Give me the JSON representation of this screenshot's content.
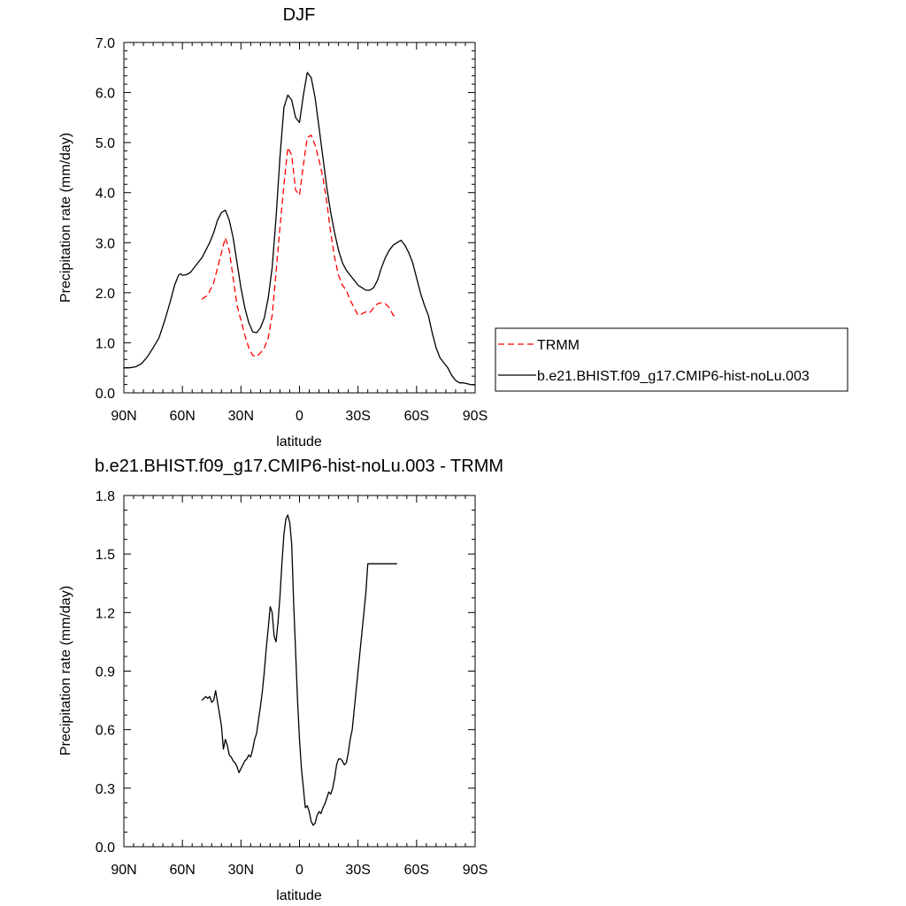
{
  "chart_data": [
    {
      "type": "line",
      "title": "DJF",
      "xlabel": "latitude",
      "ylabel": "Precipitation rate (mm/day)",
      "xlim": [
        90,
        -90
      ],
      "ylim": [
        0,
        7
      ],
      "x_ticks": [
        90,
        60,
        30,
        0,
        -30,
        -60,
        -90
      ],
      "x_tick_labels": [
        "90N",
        "60N",
        "30N",
        "0",
        "30S",
        "60S",
        "90S"
      ],
      "y_ticks": [
        0,
        1,
        2,
        3,
        4,
        5,
        6,
        7
      ],
      "y_tick_labels": [
        "0.0",
        "1.0",
        "2.0",
        "3.0",
        "4.0",
        "5.0",
        "6.0",
        "7.0"
      ],
      "legend_position": "right",
      "grid": false,
      "series": [
        {
          "name": "TRMM",
          "color": "#ff0000",
          "style": "dashed",
          "x": [
            50,
            47,
            44,
            41,
            38,
            36,
            34,
            32,
            30,
            28,
            26,
            24,
            22,
            20,
            18,
            16,
            14,
            12,
            10,
            8,
            6,
            4,
            2,
            0,
            -2,
            -4,
            -6,
            -8,
            -10,
            -12,
            -14,
            -16,
            -18,
            -20,
            -22,
            -24,
            -26,
            -28,
            -30,
            -32,
            -34,
            -36,
            -38,
            -40,
            -42,
            -44,
            -46,
            -48,
            -50
          ],
          "values": [
            1.87,
            1.95,
            2.2,
            2.65,
            3.1,
            2.85,
            2.3,
            1.75,
            1.45,
            1.15,
            0.9,
            0.75,
            0.72,
            0.8,
            0.9,
            1.1,
            1.55,
            2.4,
            3.3,
            4.15,
            4.9,
            4.75,
            4.05,
            3.95,
            4.55,
            5.1,
            5.15,
            4.95,
            4.65,
            4.3,
            3.8,
            3.2,
            2.7,
            2.35,
            2.15,
            2.05,
            1.85,
            1.7,
            1.55,
            1.58,
            1.62,
            1.6,
            1.7,
            1.78,
            1.8,
            1.78,
            1.7,
            1.55,
            1.5
          ]
        },
        {
          "name": "b.e21.BHIST.f09_g17.CMIP6-hist-noLu.003",
          "color": "#000000",
          "style": "solid",
          "x": [
            90,
            87,
            84,
            81,
            78,
            75,
            72,
            69,
            66,
            64,
            62,
            61,
            60,
            58,
            56,
            54,
            52,
            50,
            48,
            46,
            44,
            42,
            40,
            38,
            36,
            34,
            32,
            30,
            28,
            26,
            24,
            22,
            20,
            18,
            16,
            14,
            12,
            10,
            8,
            6,
            4,
            2,
            0,
            -2,
            -4,
            -6,
            -8,
            -10,
            -12,
            -14,
            -16,
            -18,
            -20,
            -22,
            -24,
            -26,
            -28,
            -30,
            -32,
            -34,
            -36,
            -38,
            -40,
            -42,
            -44,
            -46,
            -48,
            -50,
            -52,
            -54,
            -56,
            -58,
            -60,
            -62,
            -64,
            -66,
            -68,
            -70,
            -72,
            -74,
            -76,
            -78,
            -80,
            -82,
            -84,
            -86,
            -88,
            -90
          ],
          "values": [
            0.5,
            0.5,
            0.52,
            0.58,
            0.72,
            0.9,
            1.1,
            1.45,
            1.85,
            2.15,
            2.35,
            2.38,
            2.35,
            2.36,
            2.4,
            2.5,
            2.6,
            2.7,
            2.85,
            3.0,
            3.2,
            3.45,
            3.6,
            3.65,
            3.45,
            3.1,
            2.6,
            2.1,
            1.7,
            1.4,
            1.22,
            1.2,
            1.3,
            1.5,
            1.9,
            2.5,
            3.5,
            4.7,
            5.7,
            5.95,
            5.85,
            5.5,
            5.4,
            5.95,
            6.4,
            6.3,
            5.9,
            5.3,
            4.7,
            4.1,
            3.6,
            3.2,
            2.85,
            2.6,
            2.45,
            2.35,
            2.25,
            2.15,
            2.1,
            2.05,
            2.05,
            2.1,
            2.25,
            2.5,
            2.7,
            2.85,
            2.95,
            3.0,
            3.05,
            2.95,
            2.8,
            2.6,
            2.3,
            2.0,
            1.75,
            1.55,
            1.2,
            0.9,
            0.7,
            0.6,
            0.5,
            0.35,
            0.25,
            0.2,
            0.2,
            0.18,
            0.16,
            0.16
          ]
        }
      ]
    },
    {
      "type": "line",
      "title": "b.e21.BHIST.f09_g17.CMIP6-hist-noLu.003 - TRMM",
      "xlabel": "latitude",
      "ylabel": "Precipitation rate (mm/day)",
      "xlim": [
        90,
        -90
      ],
      "ylim": [
        0,
        1.8
      ],
      "x_ticks": [
        90,
        60,
        30,
        0,
        -30,
        -60,
        -90
      ],
      "x_tick_labels": [
        "90N",
        "60N",
        "30N",
        "0",
        "30S",
        "60S",
        "90S"
      ],
      "y_ticks": [
        0,
        0.3,
        0.6,
        0.9,
        1.2,
        1.5,
        1.8
      ],
      "y_tick_labels": [
        "0.0",
        "0.3",
        "0.6",
        "0.9",
        "1.2",
        "1.5",
        "1.8"
      ],
      "grid": false,
      "series": [
        {
          "color": "#000000",
          "style": "solid",
          "x": [
            50,
            49,
            48,
            47,
            46,
            45,
            44,
            43,
            42,
            41,
            40,
            39,
            38,
            37,
            36,
            35,
            34,
            33,
            32,
            31,
            30,
            29,
            28,
            27,
            26,
            25,
            24,
            23,
            22,
            21,
            20,
            19,
            18,
            17,
            16,
            15,
            14,
            13,
            12,
            11,
            10,
            9,
            8,
            7,
            6,
            5,
            4,
            3,
            2,
            1,
            0,
            -1,
            -2,
            -3,
            -4,
            -5,
            -6,
            -7,
            -8,
            -9,
            -10,
            -11,
            -12,
            -13,
            -14,
            -15,
            -16,
            -17,
            -18,
            -19,
            -20,
            -21,
            -22,
            -23,
            -24,
            -25,
            -26,
            -27,
            -28,
            -29,
            -30,
            -31,
            -32,
            -33,
            -34,
            -35,
            -36,
            -37,
            -38,
            -39,
            -40,
            -41,
            -42,
            -43,
            -44,
            -45,
            -46,
            -47,
            -48,
            -49,
            -50
          ],
          "values": [
            0.75,
            0.76,
            0.77,
            0.76,
            0.77,
            0.74,
            0.75,
            0.8,
            0.74,
            0.68,
            0.62,
            0.5,
            0.55,
            0.52,
            0.47,
            0.46,
            0.44,
            0.43,
            0.41,
            0.38,
            0.4,
            0.42,
            0.44,
            0.45,
            0.47,
            0.46,
            0.5,
            0.55,
            0.58,
            0.65,
            0.72,
            0.8,
            0.9,
            1.02,
            1.12,
            1.23,
            1.2,
            1.08,
            1.05,
            1.15,
            1.28,
            1.45,
            1.6,
            1.68,
            1.7,
            1.66,
            1.55,
            1.25,
            1.0,
            0.75,
            0.55,
            0.4,
            0.3,
            0.2,
            0.21,
            0.18,
            0.13,
            0.11,
            0.12,
            0.16,
            0.18,
            0.17,
            0.2,
            0.22,
            0.25,
            0.28,
            0.27,
            0.3,
            0.35,
            0.42,
            0.45,
            0.45,
            0.44,
            0.42,
            0.43,
            0.48,
            0.55,
            0.6,
            0.7,
            0.8,
            0.9,
            1.0,
            1.1,
            1.2,
            1.3,
            1.45,
            1.45,
            1.45,
            1.45,
            1.45,
            1.45,
            1.45,
            1.45,
            1.45,
            1.45,
            1.45,
            1.45,
            1.45,
            1.45,
            1.45,
            1.45
          ]
        }
      ]
    }
  ]
}
